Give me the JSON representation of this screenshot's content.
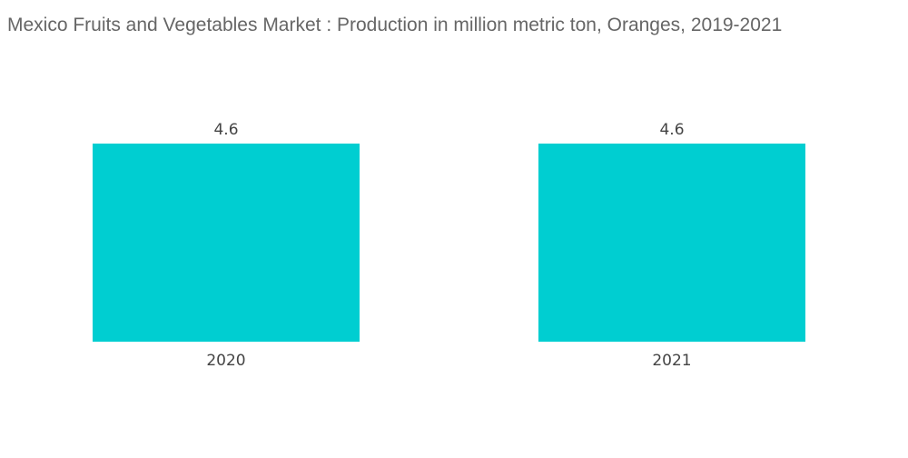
{
  "chart_data": {
    "type": "bar",
    "title": "Mexico Fruits and Vegetables Market : Production in million metric ton, Oranges, 2019-2021",
    "categories": [
      "2020",
      "2021"
    ],
    "values": [
      4.6,
      4.6
    ],
    "value_labels": [
      "4.6",
      "4.6"
    ],
    "xlabel": "",
    "ylabel": "",
    "ylim": [
      0,
      4.6
    ],
    "grid": false,
    "legend": "none",
    "bar_color": "#00CED1"
  }
}
